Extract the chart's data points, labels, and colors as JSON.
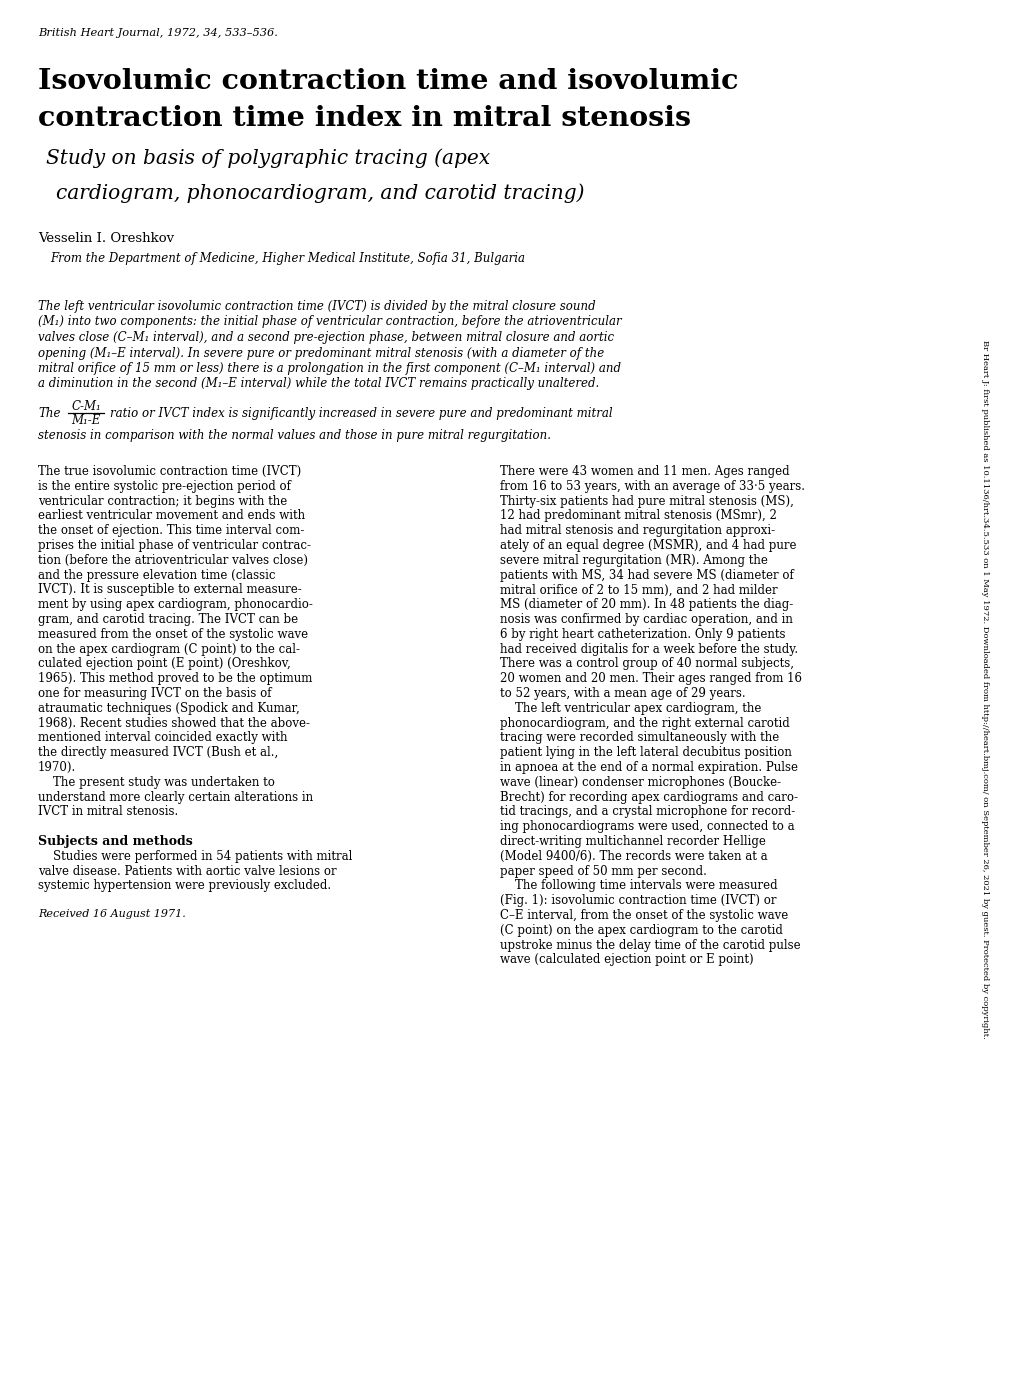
{
  "background_color": "#ffffff",
  "journal_line": "British Heart Journal, 1972, 34, 533–536.",
  "title_line1": "Isovolumic contraction time and isovolumic",
  "title_line2": "contraction time index in mitral stenosis",
  "subtitle_line1": "Study on basis of polygraphic tracing (apex",
  "subtitle_line2": "cardiogram, phonocardiogram, and carotid tracing)",
  "author": "Vesselin I. Oreshkov",
  "affiliation": "From the Department of Medicine, Higher Medical Institute, Sofia 31, Bulgaria",
  "abstract_lines": [
    "The left ventricular isovolumic contraction time (IVCT) is divided by the mitral closure sound",
    "(M₁) into two components: the initial phase of ventricular contraction, before the atrioventricular",
    "valves close (C–M₁ interval), and a second pre-ejection phase, between mitral closure and aortic",
    "opening (M₁–E interval). In severe pure or predominant mitral stenosis (with a diameter of the",
    "mitral orifice of 15 mm or less) there is a prolongation in the first component (C–M₁ interval) and",
    "a diminution in the second (M₁–E interval) while the total IVCT remains practically unaltered."
  ],
  "ratio_prefix": "The",
  "ratio_numerator": "C-M₁",
  "ratio_denominator": "M₁-E",
  "ratio_suffix": "ratio or IVCT index is significantly increased in severe pure and predominant mitral",
  "ratio_line2": "stenosis in comparison with the normal values and those in pure mitral regurgitation.",
  "body_left_col": [
    "The true isovolumic contraction time (IVCT)",
    "is the entire systolic pre-ejection period of",
    "ventricular contraction; it begins with the",
    "earliest ventricular movement and ends with",
    "the onset of ejection. This time interval com-",
    "prises the initial phase of ventricular contrac-",
    "tion (before the atrioventricular valves close)",
    "and the pressure elevation time (classic",
    "IVCT). It is susceptible to external measure-",
    "ment by using apex cardiogram, phonocardio-",
    "gram, and carotid tracing. The IVCT can be",
    "measured from the onset of the systolic wave",
    "on the apex cardiogram (C point) to the cal-",
    "culated ejection point (E point) (Oreshkov,",
    "1965). This method proved to be the optimum",
    "one for measuring IVCT on the basis of",
    "atraumatic techniques (Spodick and Kumar,",
    "1968). Recent studies showed that the above-",
    "mentioned interval coincided exactly with",
    "the directly measured IVCT (Bush et al.,",
    "1970).",
    "    The present study was undertaken to",
    "understand more clearly certain alterations in",
    "IVCT in mitral stenosis.",
    "",
    "Subjects and methods",
    "    Studies were performed in 54 patients with mitral",
    "valve disease. Patients with aortic valve lesions or",
    "systemic hypertension were previously excluded.",
    "",
    "Received 16 August 1971."
  ],
  "body_right_col": [
    "There were 43 women and 11 men. Ages ranged",
    "from 16 to 53 years, with an average of 33·5 years.",
    "Thirty-six patients had pure mitral stenosis (MS),",
    "12 had predominant mitral stenosis (MSmr), 2",
    "had mitral stenosis and regurgitation approxi-",
    "ately of an equal degree (MSMR), and 4 had pure",
    "severe mitral regurgitation (MR). Among the",
    "patients with MS, 34 had severe MS (diameter of",
    "mitral orifice of 2 to 15 mm), and 2 had milder",
    "MS (diameter of 20 mm). In 48 patients the diag-",
    "nosis was confirmed by cardiac operation, and in",
    "6 by right heart catheterization. Only 9 patients",
    "had received digitalis for a week before the study.",
    "There was a control group of 40 normal subjects,",
    "20 women and 20 men. Their ages ranged from 16",
    "to 52 years, with a mean age of 29 years.",
    "    The left ventricular apex cardiogram, the",
    "phonocardiogram, and the right external carotid",
    "tracing were recorded simultaneously with the",
    "patient lying in the left lateral decubitus position",
    "in apnoea at the end of a normal expiration. Pulse",
    "wave (linear) condenser microphones (Boucke-",
    "Brecht) for recording apex cardiograms and caro-",
    "tid tracings, and a crystal microphone for record-",
    "ing phonocardiograms were used, connected to a",
    "direct-writing multichannel recorder Hellige",
    "(Model 9400/6). The records were taken at a",
    "paper speed of 50 mm per second.",
    "    The following time intervals were measured",
    "(Fig. 1): isovolumic contraction time (IVCT) or",
    "C–E interval, from the onset of the systolic wave",
    "(C point) on the apex cardiogram to the carotid",
    "upstroke minus the delay time of the carotid pulse",
    "wave (calculated ejection point or E point)"
  ],
  "sidebar_text": "Br Heart J: first published as 10.1136/hrt.34.5.533 on 1 May 1972. Downloaded from http://heart.bmj.com/ on September 26, 2021 by guest. Protected by copyright.",
  "font_color": "#000000",
  "sidebar_color": "#000000"
}
